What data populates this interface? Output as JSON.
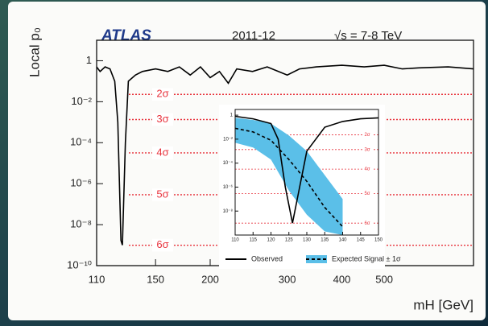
{
  "chart_data": [
    {
      "type": "line",
      "title": "ATLAS",
      "subtitle": "2011-12",
      "annotation": "√s = 7-8 TeV",
      "x_label": "mH [GeV]",
      "y_label": "Local p₀",
      "xscale": "log",
      "yscale": "log",
      "xlim": [
        110,
        800
      ],
      "ylim": [
        1e-10,
        10
      ],
      "xticks": [
        110,
        150,
        200,
        300,
        400,
        500
      ],
      "yticks": [
        1,
        {
          "value": 0.01,
          "label": "10⁻²"
        },
        {
          "value": 0.0001,
          "label": "10⁻⁴"
        },
        {
          "value": 1e-06,
          "label": "10⁻⁶"
        },
        {
          "value": 1e-08,
          "label": "10⁻⁸"
        },
        {
          "value": 1e-10,
          "label": "10⁻¹⁰"
        }
      ],
      "reference_lines": [
        {
          "value": 0.0228,
          "label": "2σ"
        },
        {
          "value": 0.00135,
          "label": "3σ"
        },
        {
          "value": 3.17e-05,
          "label": "4σ"
        },
        {
          "value": 2.87e-07,
          "label": "5σ"
        },
        {
          "value": 9.9e-10,
          "label": "6σ"
        }
      ],
      "reference_color": "#e8323c",
      "x": [
        110,
        112,
        115,
        118,
        121,
        123,
        125,
        126,
        128,
        130,
        135,
        140,
        150,
        160,
        170,
        180,
        190,
        200,
        210,
        220,
        230,
        250,
        270,
        300,
        320,
        350,
        400,
        450,
        500,
        550,
        600,
        700,
        800
      ],
      "color": "#000000",
      "values": [
        0.5,
        0.3,
        0.5,
        0.4,
        0.1,
        0.001,
        1.7e-09,
        1e-09,
        0.0001,
        0.1,
        0.2,
        0.3,
        0.4,
        0.3,
        0.5,
        0.2,
        0.5,
        0.15,
        0.3,
        0.08,
        0.4,
        0.3,
        0.5,
        0.2,
        0.4,
        0.5,
        0.6,
        0.5,
        0.6,
        0.4,
        0.45,
        0.5,
        0.4
      ]
    },
    {
      "type": "band-line",
      "xscale": "linear",
      "yscale": "log",
      "xlim": [
        110,
        150
      ],
      "ylim": [
        1e-10,
        3
      ],
      "xticks": [
        110,
        115,
        120,
        125,
        130,
        135,
        140,
        145,
        150
      ],
      "yticks": [
        1,
        {
          "value": 0.01,
          "label": "10⁻²"
        },
        {
          "value": 0.0001,
          "label": "10⁻⁴"
        },
        {
          "value": 1e-06,
          "label": "10⁻⁶"
        },
        {
          "value": 1e-08,
          "label": "10⁻⁸"
        }
      ],
      "reference_lines": [
        {
          "value": 0.0228,
          "label": "2σ"
        },
        {
          "value": 0.00135,
          "label": "3σ"
        },
        {
          "value": 3.17e-05,
          "label": "4σ"
        },
        {
          "value": 2.87e-07,
          "label": "5σ"
        },
        {
          "value": 9.9e-10,
          "label": "6σ"
        }
      ],
      "reference_color": "#e8323c",
      "series": [
        {
          "name": "Observed",
          "color": "#000000",
          "x": [
            110,
            115,
            120,
            122,
            124,
            126,
            128,
            130,
            135,
            140,
            145,
            150
          ],
          "values": [
            0.8,
            0.5,
            0.2,
            0.01,
            1e-06,
            1e-09,
            1e-06,
            0.001,
            0.1,
            0.3,
            0.5,
            0.6
          ]
        },
        {
          "name": "Expected Signal ± 1σ",
          "color": "#000000",
          "band_color": "#5bbfe8",
          "x": [
            110,
            115,
            120,
            125,
            130,
            135,
            140
          ],
          "values": [
            0.08,
            0.04,
            0.008,
            0.0002,
            3e-06,
            2e-08,
            5e-10
          ],
          "upper": [
            0.6,
            0.4,
            0.2,
            0.02,
            0.001,
            1e-05,
            1e-07
          ],
          "lower": [
            0.005,
            0.002,
            0.0002,
            5e-07,
            5e-09,
            2e-10,
            1e-10
          ]
        }
      ]
    }
  ]
}
